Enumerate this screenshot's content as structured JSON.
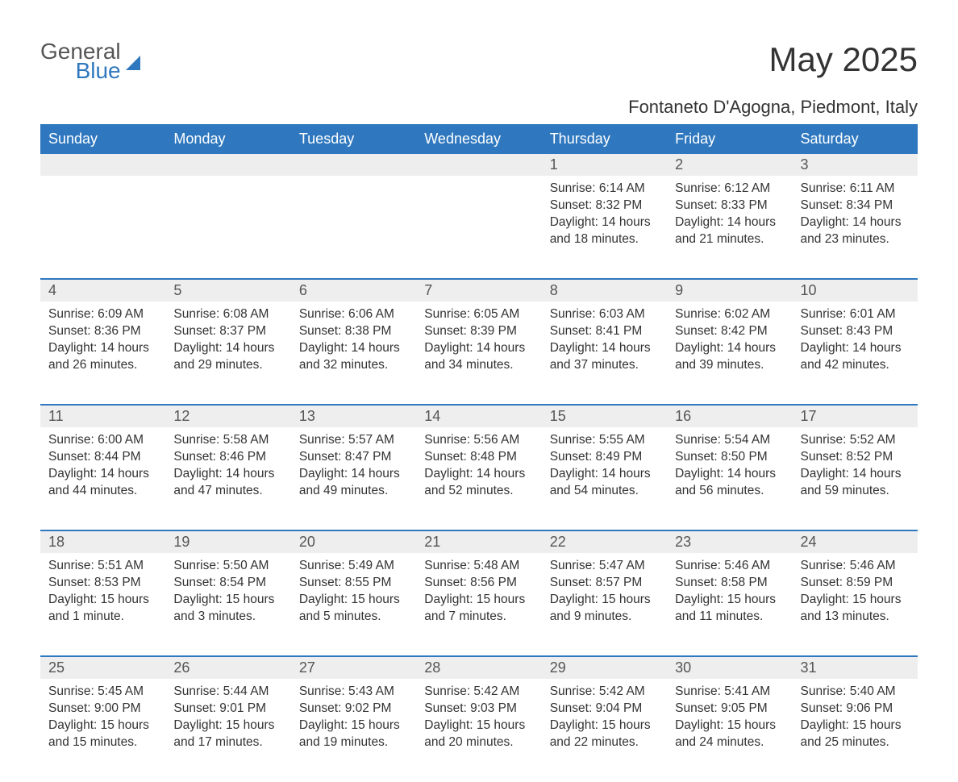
{
  "brand": {
    "text1": "General",
    "text2": "Blue",
    "color1": "#555555",
    "color2": "#2f78bf"
  },
  "title": "May 2025",
  "location": "Fontaneto D'Agogna, Piedmont, Italy",
  "colors": {
    "header_bg": "#2f78bf",
    "header_fg": "#ffffff",
    "daynum_bg": "#eeeeee",
    "daynum_fg": "#555555",
    "text": "#333333",
    "row_divider": "#2f78bf",
    "page_bg": "#ffffff"
  },
  "typography": {
    "title_fontsize": 42,
    "location_fontsize": 22,
    "header_fontsize": 18,
    "daynum_fontsize": 18,
    "cell_fontsize": 15.5
  },
  "day_headers": [
    "Sunday",
    "Monday",
    "Tuesday",
    "Wednesday",
    "Thursday",
    "Friday",
    "Saturday"
  ],
  "weeks": [
    [
      null,
      null,
      null,
      null,
      {
        "n": "1",
        "sr": "Sunrise: 6:14 AM",
        "ss": "Sunset: 8:32 PM",
        "d1": "Daylight: 14 hours",
        "d2": "and 18 minutes."
      },
      {
        "n": "2",
        "sr": "Sunrise: 6:12 AM",
        "ss": "Sunset: 8:33 PM",
        "d1": "Daylight: 14 hours",
        "d2": "and 21 minutes."
      },
      {
        "n": "3",
        "sr": "Sunrise: 6:11 AM",
        "ss": "Sunset: 8:34 PM",
        "d1": "Daylight: 14 hours",
        "d2": "and 23 minutes."
      }
    ],
    [
      {
        "n": "4",
        "sr": "Sunrise: 6:09 AM",
        "ss": "Sunset: 8:36 PM",
        "d1": "Daylight: 14 hours",
        "d2": "and 26 minutes."
      },
      {
        "n": "5",
        "sr": "Sunrise: 6:08 AM",
        "ss": "Sunset: 8:37 PM",
        "d1": "Daylight: 14 hours",
        "d2": "and 29 minutes."
      },
      {
        "n": "6",
        "sr": "Sunrise: 6:06 AM",
        "ss": "Sunset: 8:38 PM",
        "d1": "Daylight: 14 hours",
        "d2": "and 32 minutes."
      },
      {
        "n": "7",
        "sr": "Sunrise: 6:05 AM",
        "ss": "Sunset: 8:39 PM",
        "d1": "Daylight: 14 hours",
        "d2": "and 34 minutes."
      },
      {
        "n": "8",
        "sr": "Sunrise: 6:03 AM",
        "ss": "Sunset: 8:41 PM",
        "d1": "Daylight: 14 hours",
        "d2": "and 37 minutes."
      },
      {
        "n": "9",
        "sr": "Sunrise: 6:02 AM",
        "ss": "Sunset: 8:42 PM",
        "d1": "Daylight: 14 hours",
        "d2": "and 39 minutes."
      },
      {
        "n": "10",
        "sr": "Sunrise: 6:01 AM",
        "ss": "Sunset: 8:43 PM",
        "d1": "Daylight: 14 hours",
        "d2": "and 42 minutes."
      }
    ],
    [
      {
        "n": "11",
        "sr": "Sunrise: 6:00 AM",
        "ss": "Sunset: 8:44 PM",
        "d1": "Daylight: 14 hours",
        "d2": "and 44 minutes."
      },
      {
        "n": "12",
        "sr": "Sunrise: 5:58 AM",
        "ss": "Sunset: 8:46 PM",
        "d1": "Daylight: 14 hours",
        "d2": "and 47 minutes."
      },
      {
        "n": "13",
        "sr": "Sunrise: 5:57 AM",
        "ss": "Sunset: 8:47 PM",
        "d1": "Daylight: 14 hours",
        "d2": "and 49 minutes."
      },
      {
        "n": "14",
        "sr": "Sunrise: 5:56 AM",
        "ss": "Sunset: 8:48 PM",
        "d1": "Daylight: 14 hours",
        "d2": "and 52 minutes."
      },
      {
        "n": "15",
        "sr": "Sunrise: 5:55 AM",
        "ss": "Sunset: 8:49 PM",
        "d1": "Daylight: 14 hours",
        "d2": "and 54 minutes."
      },
      {
        "n": "16",
        "sr": "Sunrise: 5:54 AM",
        "ss": "Sunset: 8:50 PM",
        "d1": "Daylight: 14 hours",
        "d2": "and 56 minutes."
      },
      {
        "n": "17",
        "sr": "Sunrise: 5:52 AM",
        "ss": "Sunset: 8:52 PM",
        "d1": "Daylight: 14 hours",
        "d2": "and 59 minutes."
      }
    ],
    [
      {
        "n": "18",
        "sr": "Sunrise: 5:51 AM",
        "ss": "Sunset: 8:53 PM",
        "d1": "Daylight: 15 hours",
        "d2": "and 1 minute."
      },
      {
        "n": "19",
        "sr": "Sunrise: 5:50 AM",
        "ss": "Sunset: 8:54 PM",
        "d1": "Daylight: 15 hours",
        "d2": "and 3 minutes."
      },
      {
        "n": "20",
        "sr": "Sunrise: 5:49 AM",
        "ss": "Sunset: 8:55 PM",
        "d1": "Daylight: 15 hours",
        "d2": "and 5 minutes."
      },
      {
        "n": "21",
        "sr": "Sunrise: 5:48 AM",
        "ss": "Sunset: 8:56 PM",
        "d1": "Daylight: 15 hours",
        "d2": "and 7 minutes."
      },
      {
        "n": "22",
        "sr": "Sunrise: 5:47 AM",
        "ss": "Sunset: 8:57 PM",
        "d1": "Daylight: 15 hours",
        "d2": "and 9 minutes."
      },
      {
        "n": "23",
        "sr": "Sunrise: 5:46 AM",
        "ss": "Sunset: 8:58 PM",
        "d1": "Daylight: 15 hours",
        "d2": "and 11 minutes."
      },
      {
        "n": "24",
        "sr": "Sunrise: 5:46 AM",
        "ss": "Sunset: 8:59 PM",
        "d1": "Daylight: 15 hours",
        "d2": "and 13 minutes."
      }
    ],
    [
      {
        "n": "25",
        "sr": "Sunrise: 5:45 AM",
        "ss": "Sunset: 9:00 PM",
        "d1": "Daylight: 15 hours",
        "d2": "and 15 minutes."
      },
      {
        "n": "26",
        "sr": "Sunrise: 5:44 AM",
        "ss": "Sunset: 9:01 PM",
        "d1": "Daylight: 15 hours",
        "d2": "and 17 minutes."
      },
      {
        "n": "27",
        "sr": "Sunrise: 5:43 AM",
        "ss": "Sunset: 9:02 PM",
        "d1": "Daylight: 15 hours",
        "d2": "and 19 minutes."
      },
      {
        "n": "28",
        "sr": "Sunrise: 5:42 AM",
        "ss": "Sunset: 9:03 PM",
        "d1": "Daylight: 15 hours",
        "d2": "and 20 minutes."
      },
      {
        "n": "29",
        "sr": "Sunrise: 5:42 AM",
        "ss": "Sunset: 9:04 PM",
        "d1": "Daylight: 15 hours",
        "d2": "and 22 minutes."
      },
      {
        "n": "30",
        "sr": "Sunrise: 5:41 AM",
        "ss": "Sunset: 9:05 PM",
        "d1": "Daylight: 15 hours",
        "d2": "and 24 minutes."
      },
      {
        "n": "31",
        "sr": "Sunrise: 5:40 AM",
        "ss": "Sunset: 9:06 PM",
        "d1": "Daylight: 15 hours",
        "d2": "and 25 minutes."
      }
    ]
  ]
}
